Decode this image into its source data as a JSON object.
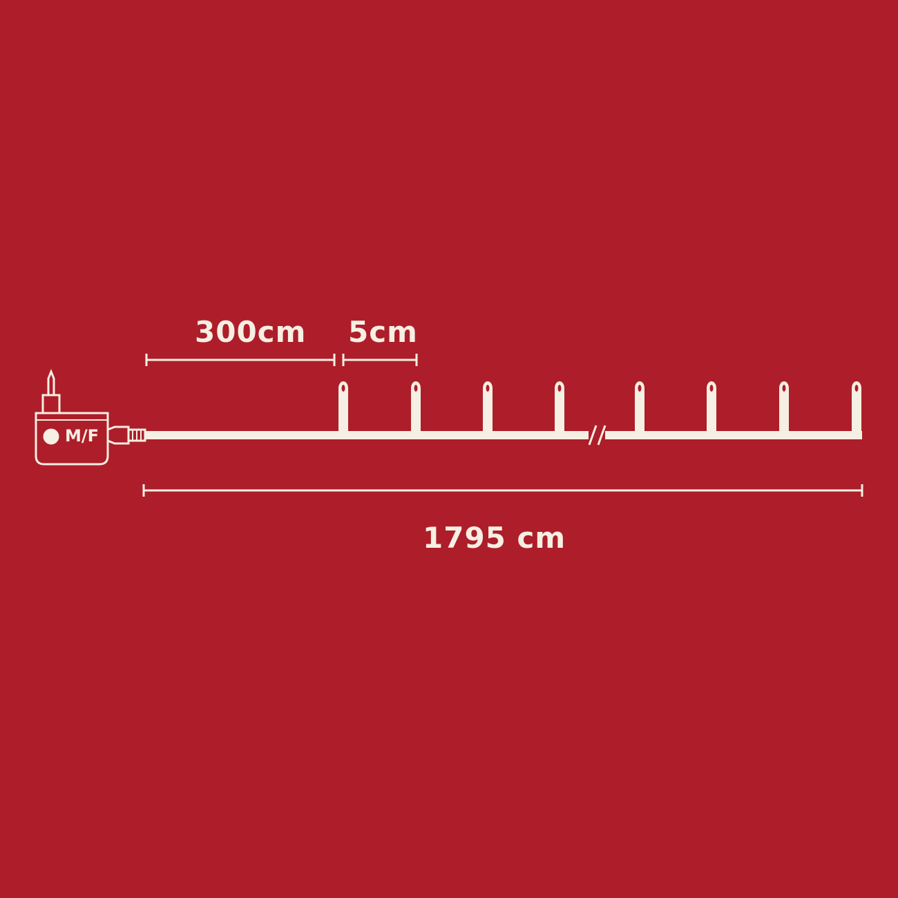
{
  "colors": {
    "background": "#ad1e2a",
    "line": "#f6efe3"
  },
  "labels": {
    "lead_cable": "300cm",
    "bulb_spacing": "5cm",
    "total_length": "1795 cm"
  },
  "adapter": {
    "button_label": "M/F",
    "icon": "power-adapter-icon"
  },
  "lights": {
    "visible_bulbs": 8,
    "break_marker": "cable-break-icon"
  }
}
